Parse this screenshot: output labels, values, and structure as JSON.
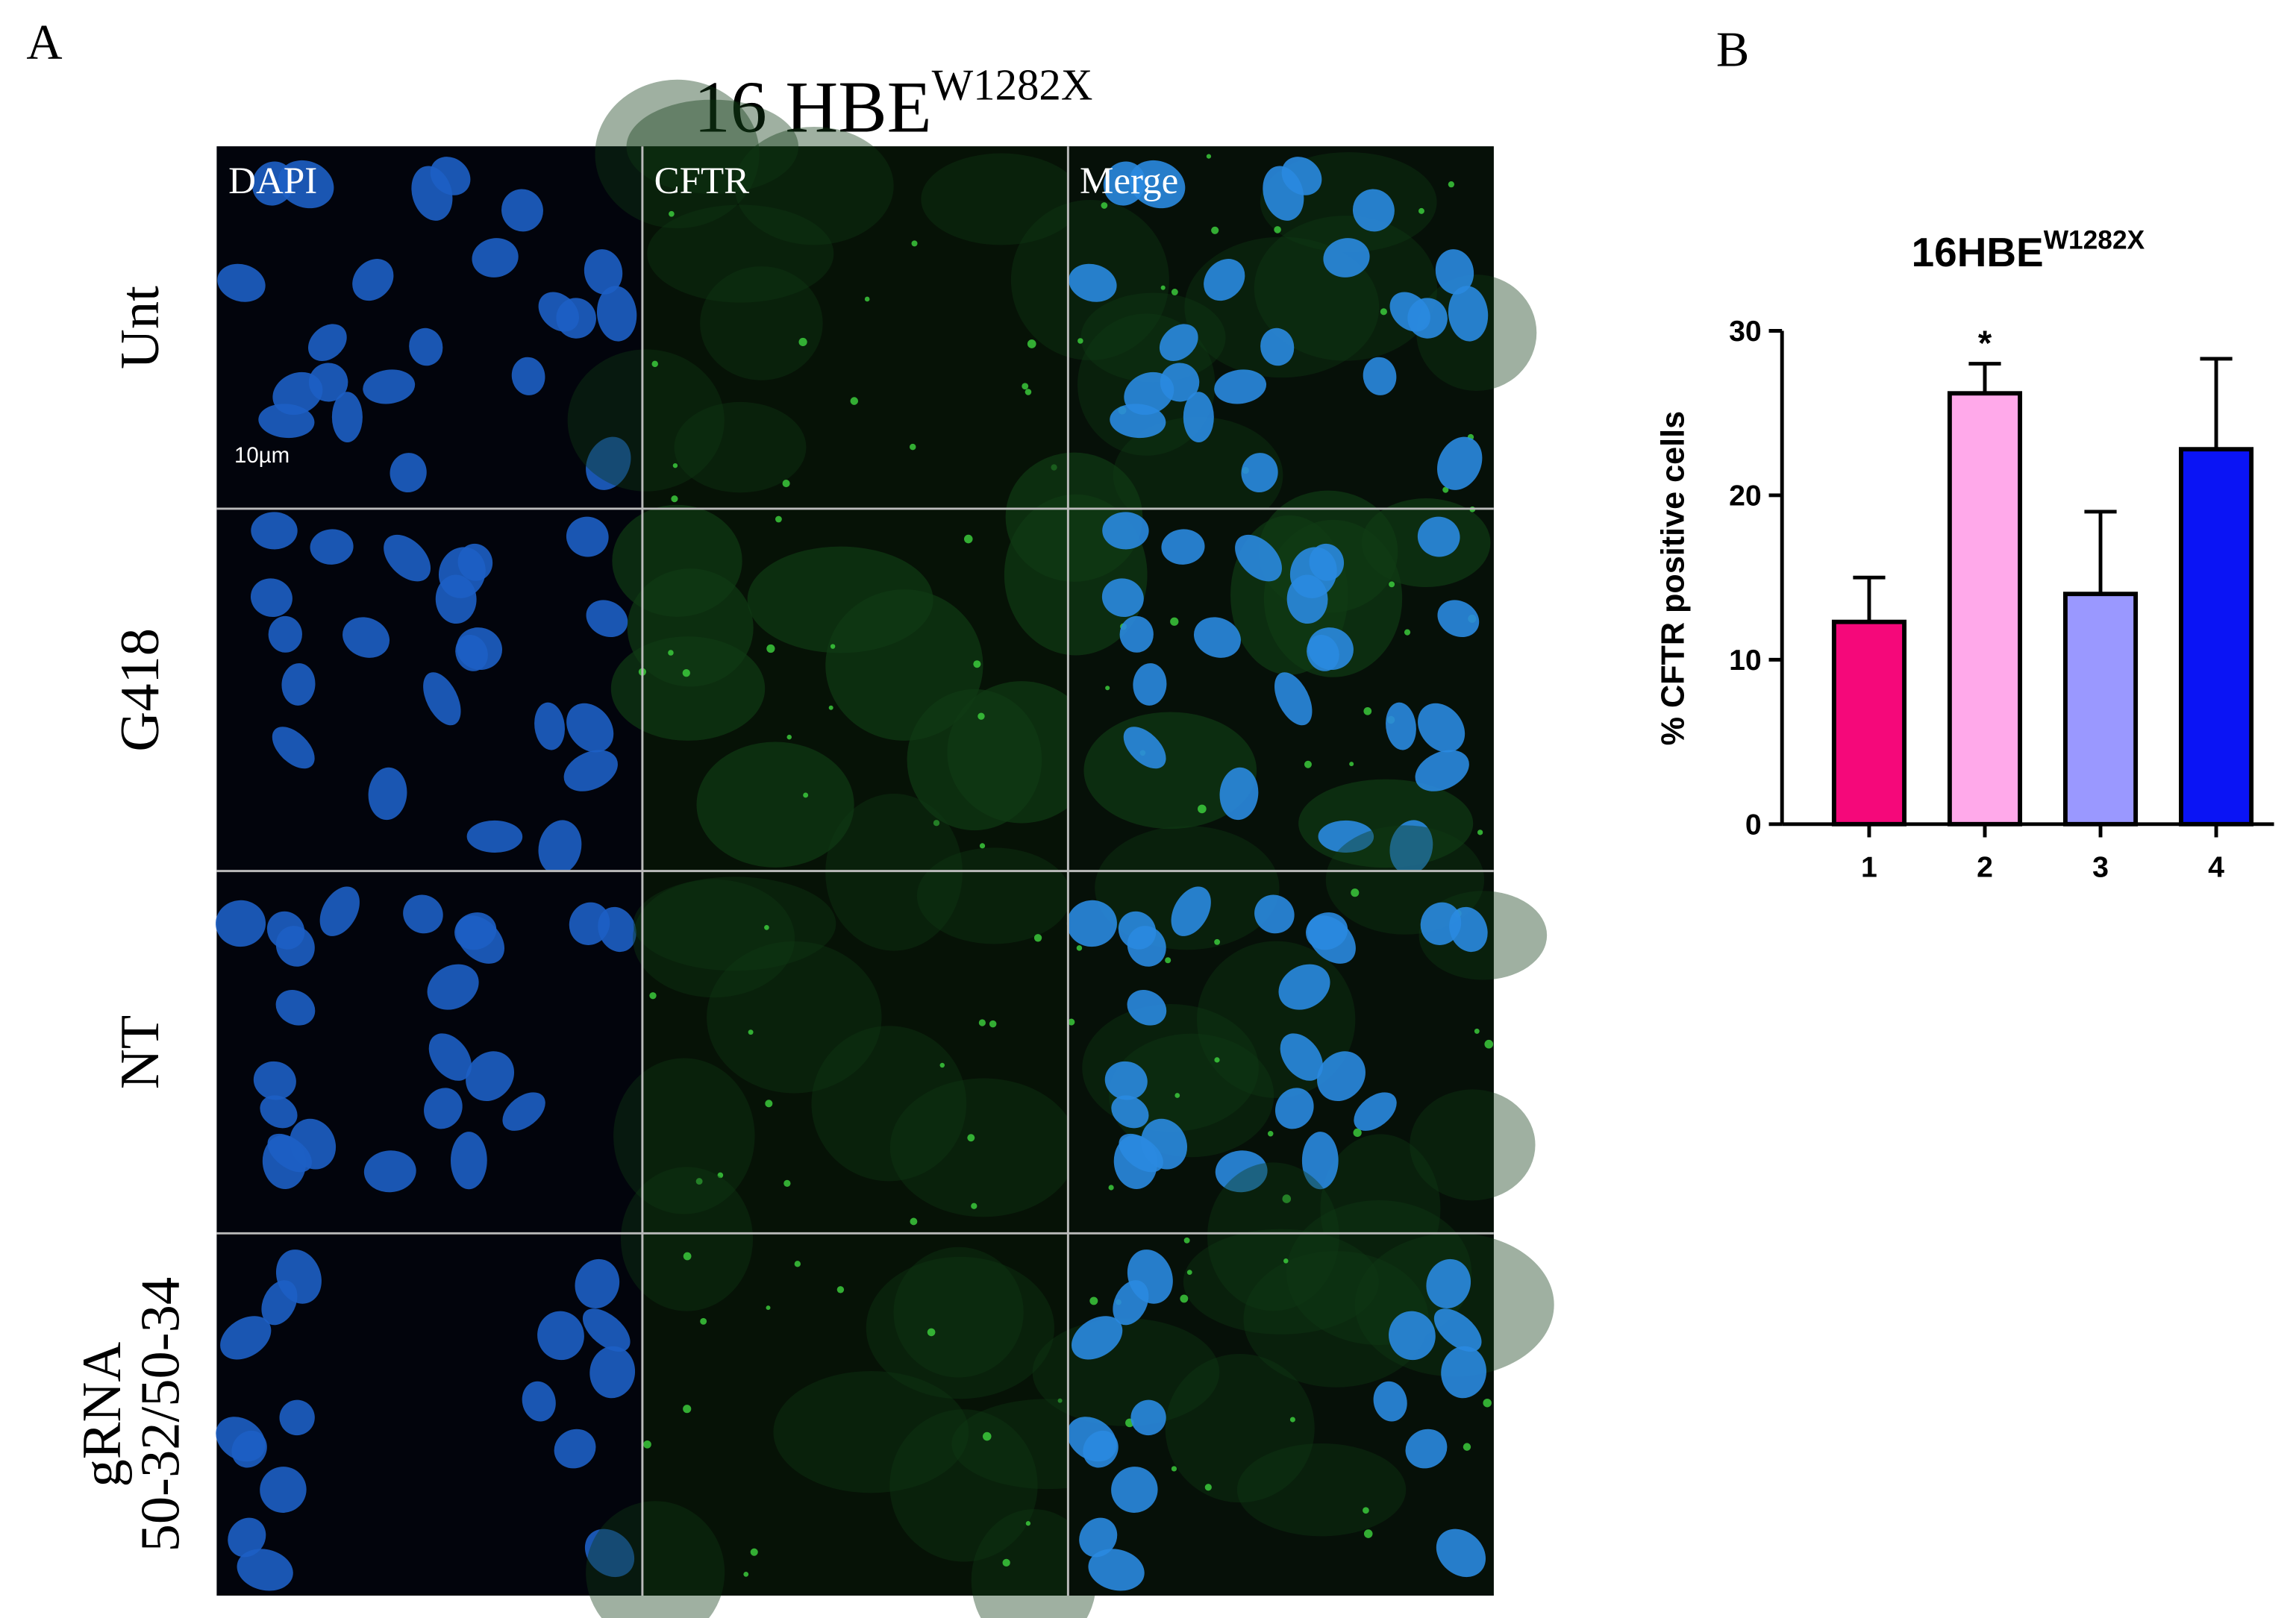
{
  "panel_a": {
    "label": "A",
    "title": "16 HBE",
    "title_sup": "W1282X",
    "columns": [
      "DAPI",
      "CFTR",
      "Merge"
    ],
    "rows": [
      [
        "Unt"
      ],
      [
        "G418"
      ],
      [
        "NT"
      ],
      [
        "gRNA",
        "50-32/50-34"
      ]
    ],
    "scale_bar": "10µm"
  },
  "chart_data": {
    "type": "bar",
    "label": "B",
    "title": "16HBE",
    "title_sup": "W1282X",
    "y_label": "% CFTR positive cells",
    "categories": [
      "1",
      "2",
      "3",
      "4"
    ],
    "values": [
      12.3,
      26.2,
      14,
      22.8
    ],
    "errors": [
      2.7,
      1.8,
      5,
      5.5
    ],
    "value_annotations": [
      null,
      "*",
      null,
      null
    ],
    "colors": [
      "#f5087a",
      "#ffa9ea",
      "#9a98ff",
      "#0a14f5"
    ],
    "ylim": [
      0,
      30
    ],
    "yticks": [
      0,
      10,
      20,
      30
    ]
  }
}
